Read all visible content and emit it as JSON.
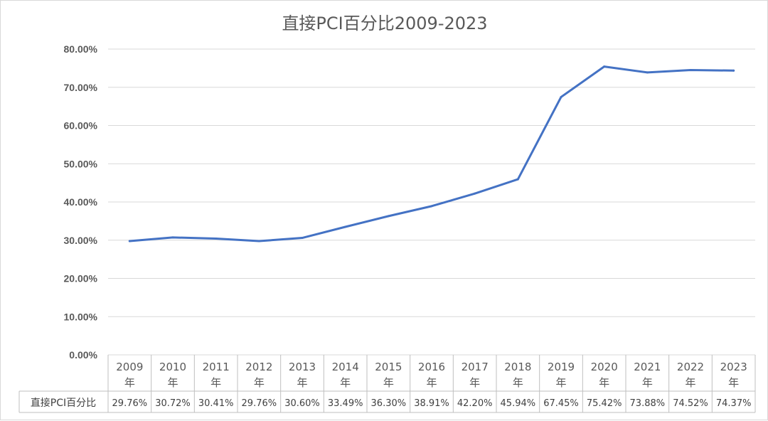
{
  "chart_data": {
    "type": "line",
    "title": "直接PCI百分比2009-2023",
    "categories": [
      "2009年",
      "2010年",
      "2011年",
      "2012年",
      "2013年",
      "2014年",
      "2015年",
      "2016年",
      "2017年",
      "2018年",
      "2019年",
      "2020年",
      "2021年",
      "2022年",
      "2023年"
    ],
    "series": [
      {
        "name": "直接PCI百分比",
        "values": [
          29.76,
          30.72,
          30.41,
          29.76,
          30.6,
          33.49,
          36.3,
          38.91,
          42.2,
          45.94,
          67.45,
          75.42,
          73.88,
          74.52,
          74.37
        ],
        "labels": [
          "29.76%",
          "30.72%",
          "30.41%",
          "29.76%",
          "30.60%",
          "33.49%",
          "36.30%",
          "38.91%",
          "42.20%",
          "45.94%",
          "67.45%",
          "75.42%",
          "73.88%",
          "74.52%",
          "74.37%"
        ],
        "color": "#4472c4"
      }
    ],
    "yticks": [
      "0.00%",
      "10.00%",
      "20.00%",
      "30.00%",
      "40.00%",
      "50.00%",
      "60.00%",
      "70.00%",
      "80.00%"
    ],
    "ylim": [
      0,
      80
    ],
    "grid": true,
    "legend": "data-table"
  }
}
